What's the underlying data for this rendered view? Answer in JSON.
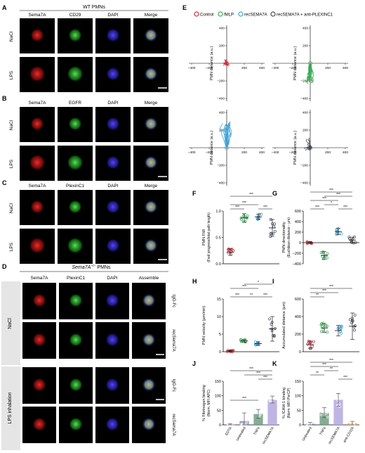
{
  "colors": {
    "control": "#cc2d3b",
    "fmlp": "#36a852",
    "recsema7a": "#3fa2d9",
    "plexin": "#444a5c",
    "edta": "#e64fb5",
    "untreated": "#8090b3",
    "tnfa": "#6e9d84",
    "recsema7a_bar": "#b3a8df",
    "anticd11b": "#f0a64c",
    "sema": "#e01a1a",
    "cd29": "#2fd42f",
    "dapi": "#3a2fd6"
  },
  "panels": {
    "A": {
      "letter": "A",
      "header": "WT PMNs",
      "cols": [
        "Sema7A",
        "CD29",
        "DAPI",
        "Merge"
      ],
      "rows": [
        "NaCl",
        "LPS"
      ]
    },
    "B": {
      "letter": "B",
      "cols": [
        "Sema7A",
        "EGFR",
        "DAPI",
        "Merge"
      ],
      "rows": [
        "NaCl",
        "LPS"
      ]
    },
    "C": {
      "letter": "C",
      "cols": [
        "Sema7A",
        "PlexinC1",
        "DAPI",
        "Merge"
      ],
      "rows": [
        "NaCl",
        "LPS"
      ]
    },
    "D": {
      "letter": "D",
      "header_prefix": "Sema7A",
      "header_sup": "−/−",
      "header_suffix": " PMNs",
      "cols": [
        "Sema7A",
        "PlexinC1",
        "DAPI",
        "Assemble"
      ],
      "groups": [
        "NaCl",
        "LPS inhalation"
      ],
      "row_labels": [
        "IgG-Fc",
        "recSema7A",
        "IgG-Fc",
        "recSema7A"
      ]
    },
    "E": {
      "letter": "E",
      "legend": [
        "Control",
        "fMLP",
        "recSEMA7A",
        "recSEMA7A + anti-PLEXINC1"
      ],
      "ylabel": "PMN distance (a.u.)",
      "ticks": [
        "−400",
        "−200",
        "200",
        "400"
      ]
    },
    "F": {
      "letter": "F",
      "ylabel_1": "PMN FMI",
      "ylabel_2": "(Fwd progress/total path length)",
      "sig": [
        "***",
        "***",
        "***",
        "***"
      ]
    },
    "G": {
      "letter": "G",
      "ylabel_1": "PMN directionality",
      "ylabel_2": "(Euclidean distance - μm)",
      "sig": [
        "***",
        "*",
        "***",
        "***",
        "***",
        "***"
      ]
    },
    "H": {
      "letter": "H",
      "ylabel_1": "PMN velocity (μm/min)",
      "sig": [
        "***",
        "**",
        "***",
        "***",
        "*"
      ]
    },
    "I": {
      "letter": "I",
      "ylabel_1": "Accumulated distance (μm)",
      "sig": [
        "**",
        "***",
        "***"
      ]
    },
    "J": {
      "letter": "J",
      "ylabel_1": "% Fibrinogen binding",
      "ylabel_2": "(Norm. MFI APC)",
      "sig": [
        "***",
        "***",
        "***",
        "***"
      ]
    },
    "K": {
      "letter": "K",
      "ylabel_1": "% ICAM-1 binding",
      "ylabel_2": "(Norm. MFI PerCP)",
      "sig": [
        "***",
        "**",
        "***",
        "**",
        "***"
      ]
    }
  },
  "chart_data": [
    {
      "panel": "E",
      "type": "line",
      "subplots": [
        {
          "series": "Control",
          "spread": "tight cluster near origin"
        },
        {
          "series": "fMLP",
          "spread": "tracks 0 to -200 along y"
        },
        {
          "series": "recSEMA7A",
          "spread": "tracks toward +400 y"
        },
        {
          "series": "recSEMA7A + anti-PLEXINC1",
          "spread": "short tracks near origin"
        }
      ],
      "xlim": [
        -400,
        400
      ],
      "ylim": [
        -400,
        400
      ],
      "xticks": [
        -400,
        -200,
        200,
        400
      ],
      "yticks": [
        -400,
        -200,
        200,
        400
      ]
    },
    {
      "panel": "F",
      "type": "scatter",
      "categories": [
        "Control",
        "fMLP",
        "recSEMA7A",
        "recSEMA7A + anti-PLEXINC1"
      ],
      "means": [
        0.22,
        0.87,
        0.89,
        0.68
      ],
      "sd": [
        0.06,
        0.08,
        0.05,
        0.16
      ],
      "ylim": [
        0,
        1.0
      ],
      "yticks": [
        "0.0",
        "0.5",
        "1.0"
      ]
    },
    {
      "panel": "G",
      "type": "scatter",
      "categories": [
        "Control",
        "fMLP",
        "recSEMA7A",
        "recSEMA7A + anti-PLEXINC1"
      ],
      "means": [
        0,
        -240,
        210,
        50
      ],
      "sd": [
        15,
        70,
        60,
        55
      ],
      "ylim": [
        -400,
        600
      ],
      "yticks": [
        "600",
        "400",
        "200",
        "0",
        "−200",
        "−400"
      ]
    },
    {
      "panel": "H",
      "type": "scatter",
      "categories": [
        "Control",
        "fMLP",
        "recSEMA7A",
        "recSEMA7A + anti-PLEXINC1"
      ],
      "means": [
        0.2,
        3.1,
        2.3,
        6.5
      ],
      "sd": [
        0.2,
        0.4,
        0.5,
        3.5
      ],
      "ylim": [
        0,
        15
      ],
      "yticks": [
        "0",
        "5",
        "10",
        "15"
      ]
    },
    {
      "panel": "I",
      "type": "scatter",
      "categories": [
        "Control",
        "fMLP",
        "recSEMA7A",
        "recSEMA7A + anti-PLEXINC1"
      ],
      "means": [
        80,
        270,
        240,
        290
      ],
      "sd": [
        40,
        50,
        60,
        150
      ],
      "ylim": [
        0,
        600
      ],
      "yticks": [
        "0",
        "200",
        "400",
        "600"
      ]
    },
    {
      "panel": "J",
      "type": "bar",
      "categories": [
        "EDTA",
        "Untreated",
        "TNFα",
        "recSEMA7A"
      ],
      "values": [
        2,
        13,
        38,
        87
      ],
      "sd": [
        2,
        28,
        15,
        12
      ],
      "ylim": [
        0,
        150
      ],
      "yticks": [
        "0",
        "50",
        "100",
        "150"
      ]
    },
    {
      "panel": "K",
      "type": "bar",
      "categories": [
        "Untreated",
        "TNFα",
        "recSEMA7A",
        "anti-CD11b"
      ],
      "values": [
        4,
        42,
        86,
        6
      ],
      "sd": [
        4,
        17,
        22,
        6
      ],
      "ylim": [
        0,
        150
      ],
      "yticks": [
        "0",
        "50",
        "100",
        "150"
      ]
    }
  ]
}
